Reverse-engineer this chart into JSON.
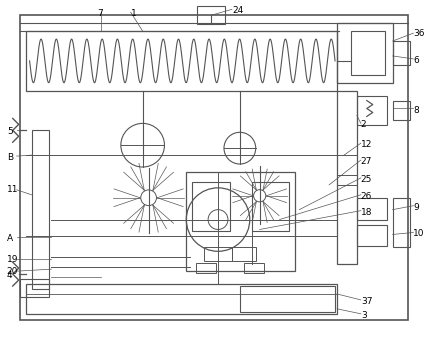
{
  "bg_color": "#ffffff",
  "line_color": "#555555",
  "figsize": [
    4.43,
    3.37
  ],
  "dpi": 100
}
